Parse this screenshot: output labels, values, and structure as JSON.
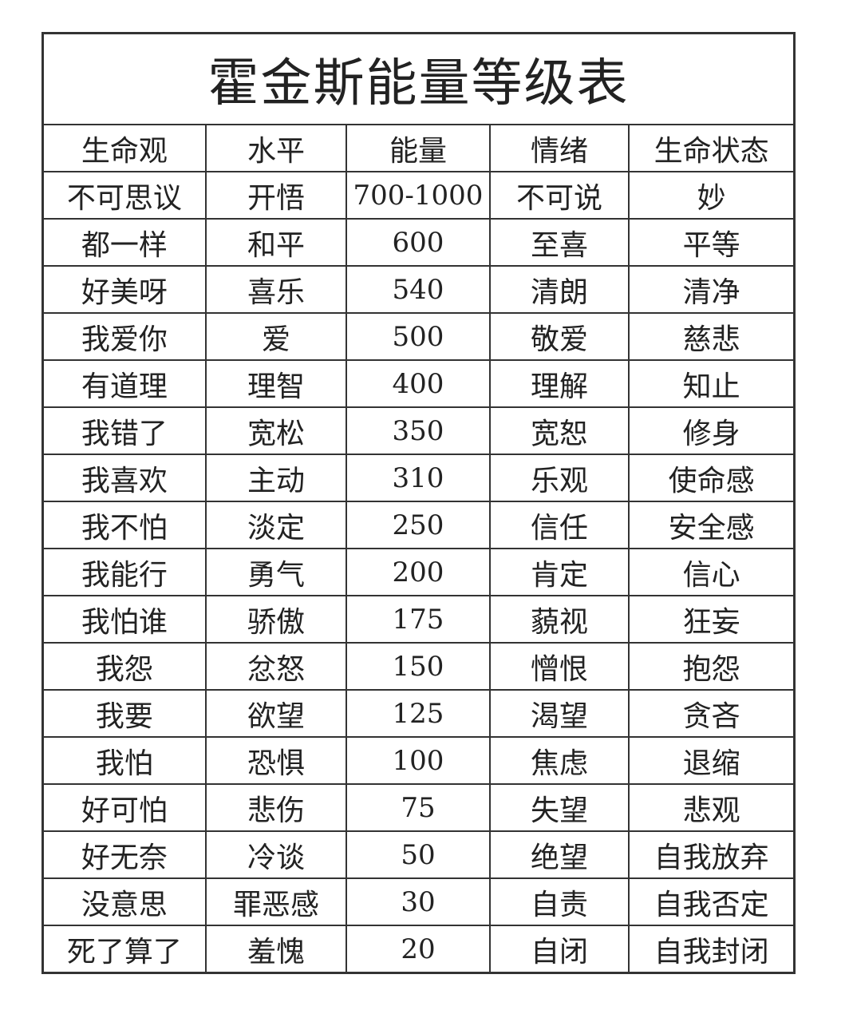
{
  "title": "霍金斯能量等级表",
  "headers": [
    "生命观",
    "水平",
    "能量",
    "情绪",
    "生命状态"
  ],
  "rows": [
    [
      "不可思议",
      "开悟",
      "700-1000",
      "不可说",
      "妙"
    ],
    [
      "都一样",
      "和平",
      "600",
      "至喜",
      "平等"
    ],
    [
      "好美呀",
      "喜乐",
      "540",
      "清朗",
      "清净"
    ],
    [
      "我爱你",
      "爱",
      "500",
      "敬爱",
      "慈悲"
    ],
    [
      "有道理",
      "理智",
      "400",
      "理解",
      "知止"
    ],
    [
      "我错了",
      "宽松",
      "350",
      "宽恕",
      "修身"
    ],
    [
      "我喜欢",
      "主动",
      "310",
      "乐观",
      "使命感"
    ],
    [
      "我不怕",
      "淡定",
      "250",
      "信任",
      "安全感"
    ],
    [
      "我能行",
      "勇气",
      "200",
      "肯定",
      "信心"
    ],
    [
      "我怕谁",
      "骄傲",
      "175",
      "藐视",
      "狂妄"
    ],
    [
      "我怨",
      "忿怒",
      "150",
      "憎恨",
      "抱怨"
    ],
    [
      "我要",
      "欲望",
      "125",
      "渴望",
      "贪吝"
    ],
    [
      "我怕",
      "恐惧",
      "100",
      "焦虑",
      "退缩"
    ],
    [
      "好可怕",
      "悲伤",
      "75",
      "失望",
      "悲观"
    ],
    [
      "好无奈",
      "冷谈",
      "50",
      "绝望",
      "自我放弃"
    ],
    [
      "没意思",
      "罪恶感",
      "30",
      "自责",
      "自我否定"
    ],
    [
      "死了算了",
      "羞愧",
      "20",
      "自闭",
      "自我封闭"
    ]
  ]
}
